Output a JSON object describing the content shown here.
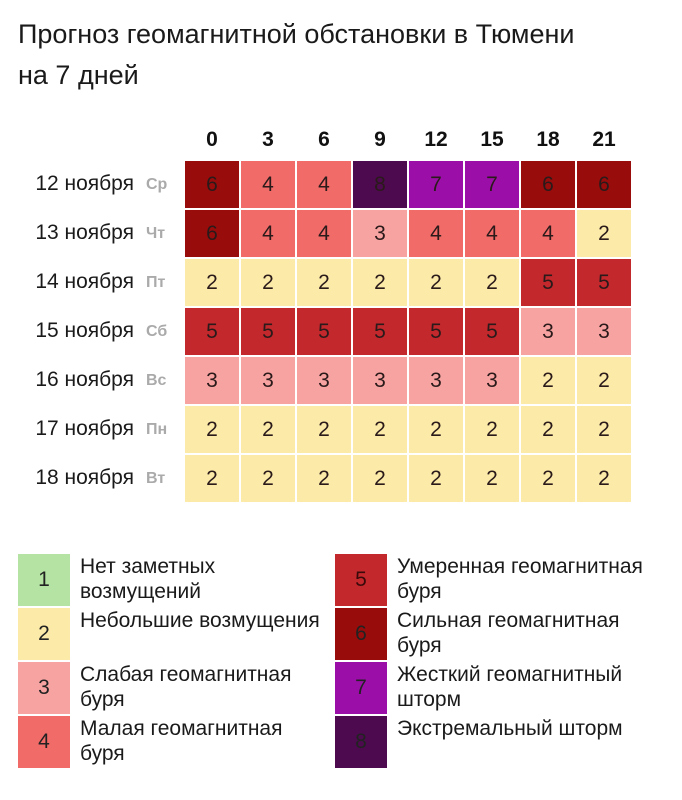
{
  "chart_data": {
    "type": "heatmap",
    "title": "Прогноз геомагнитной обстановки в Тюмени на 7 дней",
    "x": [
      0,
      3,
      6,
      9,
      12,
      15,
      18,
      21
    ],
    "rows": [
      {
        "date": "12 ноября",
        "weekday": "Ср"
      },
      {
        "date": "13 ноября",
        "weekday": "Чт"
      },
      {
        "date": "14 ноября",
        "weekday": "Пт"
      },
      {
        "date": "15 ноября",
        "weekday": "Сб"
      },
      {
        "date": "16 ноября",
        "weekday": "Вс"
      },
      {
        "date": "17 ноября",
        "weekday": "Пн"
      },
      {
        "date": "18 ноября",
        "weekday": "Вт"
      }
    ],
    "values": [
      [
        6,
        4,
        4,
        8,
        7,
        7,
        6,
        6
      ],
      [
        6,
        4,
        4,
        3,
        4,
        4,
        4,
        2
      ],
      [
        2,
        2,
        2,
        2,
        2,
        2,
        5,
        5
      ],
      [
        5,
        5,
        5,
        5,
        5,
        5,
        3,
        3
      ],
      [
        3,
        3,
        3,
        3,
        3,
        3,
        2,
        2
      ],
      [
        2,
        2,
        2,
        2,
        2,
        2,
        2,
        2
      ],
      [
        2,
        2,
        2,
        2,
        2,
        2,
        2,
        2
      ]
    ],
    "levels": [
      {
        "value": 1,
        "label": "Нет заметных возмущений",
        "color": "#b4e3a3"
      },
      {
        "value": 2,
        "label": "Небольшие возмущения",
        "color": "#fbeaa8"
      },
      {
        "value": 3,
        "label": "Слабая геомагнитная буря",
        "color": "#f6a3a1"
      },
      {
        "value": 4,
        "label": "Малая геомагнитная буря",
        "color": "#f16b69"
      },
      {
        "value": 5,
        "label": "Умеренная геомагнитная буря",
        "color": "#c3282d"
      },
      {
        "value": 6,
        "label": "Сильная геомагнитная буря",
        "color": "#990c0c"
      },
      {
        "value": 7,
        "label": "Жесткий геомагнитный шторм",
        "color": "#9b0fa8"
      },
      {
        "value": 8,
        "label": "Экстремальный шторм",
        "color": "#4d0a4f"
      }
    ]
  }
}
